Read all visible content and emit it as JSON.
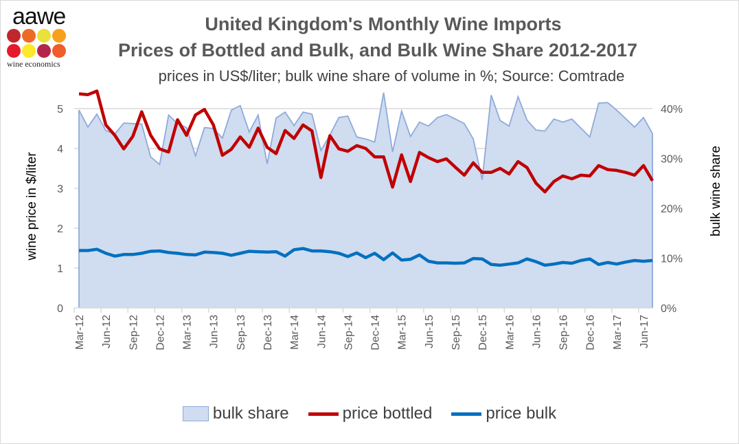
{
  "logo": {
    "text": "aawe",
    "subtext": "wine economics",
    "dot_colors": [
      "#c0272d",
      "#ec6a26",
      "#e9e23a",
      "#f6a01c",
      "#e31b2b",
      "#fde82a",
      "#b3254a",
      "#ef5d2a"
    ]
  },
  "chart_data": {
    "type": "line",
    "title": "United Kingdom's Monthly Wine Imports",
    "title_line2": "Prices of Bottled and Bulk, and Bulk Wine Share 2012-2017",
    "subtitle": "prices in US$/liter; bulk wine share of volume in %; Source: Comtrade",
    "ylabel": "wine price in $/liter",
    "y2label": "bulk wine share",
    "ylim": [
      0,
      5.5
    ],
    "y2lim": [
      0,
      44
    ],
    "yticks": [
      "0",
      "1",
      "2",
      "3",
      "4",
      "5"
    ],
    "y2ticks": [
      "0%",
      "10%",
      "20%",
      "30%",
      "40%"
    ],
    "xtick_labels": [
      "Mar-12",
      "Jun-12",
      "Sep-12",
      "Dec-12",
      "Mar-13",
      "Jun-13",
      "Sep-13",
      "Dec-13",
      "Mar-14",
      "Jun-14",
      "Sep-14",
      "Dec-14",
      "Mar-15",
      "Jun-15",
      "Sep-15",
      "Dec-15",
      "Mar-16",
      "Jun-16",
      "Sep-16",
      "Dec-16",
      "Mar-17",
      "Jun-17"
    ],
    "x_start": "Mar-12",
    "x_end": "Jul-17",
    "grid": true,
    "legend_position": "bottom",
    "series": [
      {
        "name": "bulk share",
        "type": "area",
        "axis": "right",
        "color": "#d0dcef",
        "line_color": "#8eaadb",
        "values": [
          39.7,
          36.3,
          38.9,
          35.6,
          34.9,
          37.1,
          37.0,
          36.9,
          30.3,
          28.8,
          38.7,
          37.0,
          36.2,
          30.5,
          36.2,
          36.0,
          34.1,
          39.7,
          40.6,
          35.3,
          38.7,
          28.9,
          38.1,
          39.3,
          36.6,
          39.3,
          38.9,
          31.6,
          34.7,
          38.2,
          38.5,
          34.3,
          33.9,
          33.3,
          43.2,
          31.3,
          39.5,
          34.4,
          37.3,
          36.5,
          38.2,
          38.8,
          37.9,
          37.0,
          33.9,
          25.7,
          42.7,
          37.6,
          36.5,
          42.4,
          37.7,
          35.7,
          35.5,
          37.9,
          37.3,
          37.9,
          36.1,
          34.3,
          41.1,
          41.2,
          39.7,
          38.0,
          36.3,
          38.2,
          35.0
        ]
      },
      {
        "name": "price bottled",
        "type": "line",
        "axis": "left",
        "color": "#c00000",
        "values": [
          5.37,
          5.35,
          5.44,
          4.59,
          4.33,
          3.99,
          4.3,
          4.92,
          4.33,
          3.99,
          3.91,
          4.72,
          4.33,
          4.84,
          4.98,
          4.59,
          3.83,
          3.98,
          4.29,
          4.03,
          4.51,
          4.03,
          3.87,
          4.45,
          4.25,
          4.59,
          4.44,
          3.27,
          4.32,
          3.99,
          3.93,
          4.07,
          4.0,
          3.79,
          3.79,
          3.03,
          3.84,
          3.17,
          3.9,
          3.77,
          3.67,
          3.74,
          3.53,
          3.33,
          3.64,
          3.4,
          3.4,
          3.5,
          3.36,
          3.67,
          3.52,
          3.13,
          2.91,
          3.17,
          3.31,
          3.24,
          3.33,
          3.31,
          3.57,
          3.47,
          3.45,
          3.4,
          3.33,
          3.57,
          3.19
        ]
      },
      {
        "name": "price bulk",
        "type": "line",
        "axis": "left",
        "color": "#0070c0",
        "values": [
          1.44,
          1.44,
          1.47,
          1.37,
          1.3,
          1.34,
          1.34,
          1.37,
          1.42,
          1.43,
          1.39,
          1.37,
          1.34,
          1.33,
          1.4,
          1.39,
          1.37,
          1.32,
          1.37,
          1.42,
          1.41,
          1.4,
          1.41,
          1.3,
          1.46,
          1.49,
          1.43,
          1.43,
          1.41,
          1.37,
          1.29,
          1.38,
          1.26,
          1.37,
          1.21,
          1.38,
          1.2,
          1.22,
          1.33,
          1.17,
          1.13,
          1.13,
          1.12,
          1.13,
          1.24,
          1.23,
          1.09,
          1.07,
          1.1,
          1.13,
          1.23,
          1.16,
          1.07,
          1.1,
          1.14,
          1.12,
          1.19,
          1.23,
          1.09,
          1.14,
          1.1,
          1.15,
          1.19,
          1.17,
          1.19
        ]
      }
    ]
  }
}
